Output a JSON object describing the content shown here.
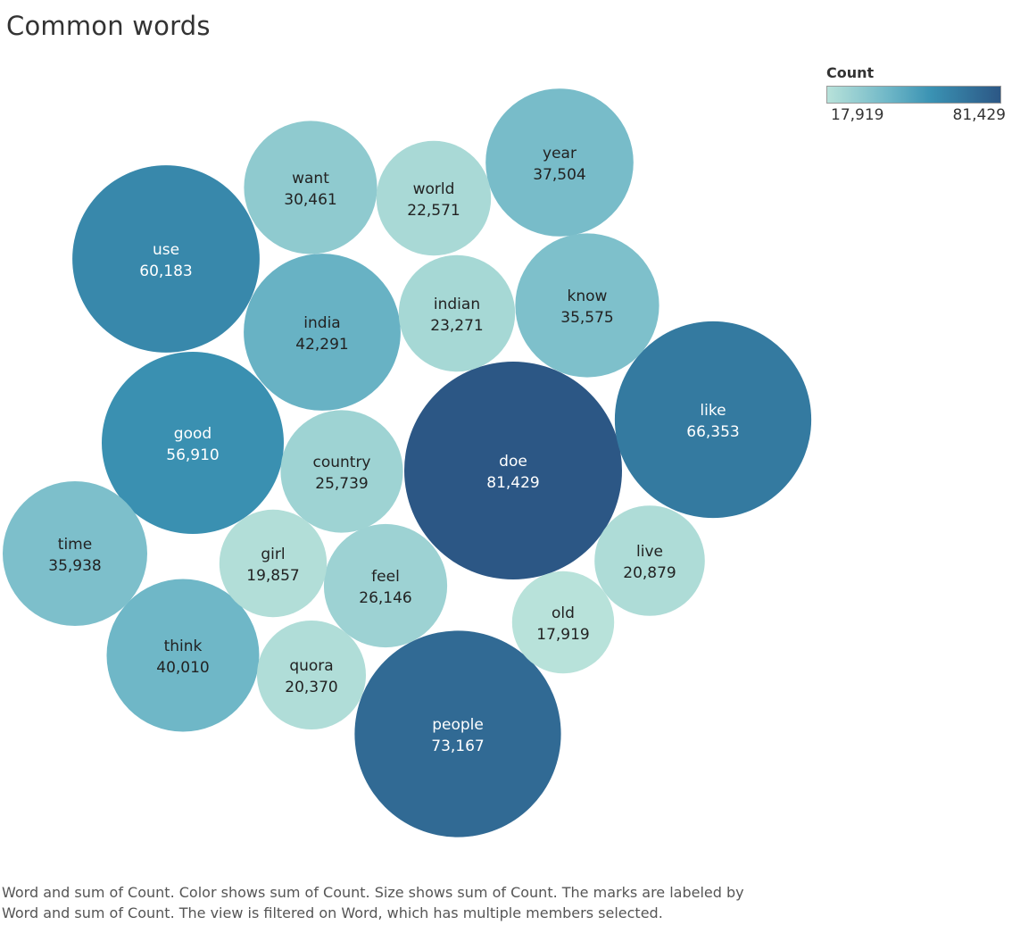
{
  "title": "Common words",
  "legend": {
    "title": "Count",
    "min_label": "17,919",
    "max_label": "81,429",
    "color_low": "#b7e1d9",
    "color_high": "#2c5785"
  },
  "caption": {
    "line1": "Word and sum of Count.  Color shows sum of Count.  Size shows sum of Count.  The marks are labeled by",
    "line2": "Word and sum of Count. The view is filtered on Word, which has multiple members selected."
  },
  "chart_data": {
    "type": "bubble",
    "size_encoding": "sum of Count",
    "color_encoding": "sum of Count",
    "points": [
      {
        "word": "doe",
        "count": 81429,
        "label": "81,429"
      },
      {
        "word": "people",
        "count": 73167,
        "label": "73,167"
      },
      {
        "word": "like",
        "count": 66353,
        "label": "66,353"
      },
      {
        "word": "use",
        "count": 60183,
        "label": "60,183"
      },
      {
        "word": "good",
        "count": 56910,
        "label": "56,910"
      },
      {
        "word": "india",
        "count": 42291,
        "label": "42,291"
      },
      {
        "word": "think",
        "count": 40010,
        "label": "40,010"
      },
      {
        "word": "year",
        "count": 37504,
        "label": "37,504"
      },
      {
        "word": "time",
        "count": 35938,
        "label": "35,938"
      },
      {
        "word": "know",
        "count": 35575,
        "label": "35,575"
      },
      {
        "word": "want",
        "count": 30461,
        "label": "30,461"
      },
      {
        "word": "feel",
        "count": 26146,
        "label": "26,146"
      },
      {
        "word": "country",
        "count": 25739,
        "label": "25,739"
      },
      {
        "word": "indian",
        "count": 23271,
        "label": "23,271"
      },
      {
        "word": "world",
        "count": 22571,
        "label": "22,571"
      },
      {
        "word": "live",
        "count": 20879,
        "label": "20,879"
      },
      {
        "word": "quora",
        "count": 20370,
        "label": "20,370"
      },
      {
        "word": "girl",
        "count": 19857,
        "label": "19,857"
      },
      {
        "word": "old",
        "count": 17919,
        "label": "17,919"
      }
    ]
  }
}
